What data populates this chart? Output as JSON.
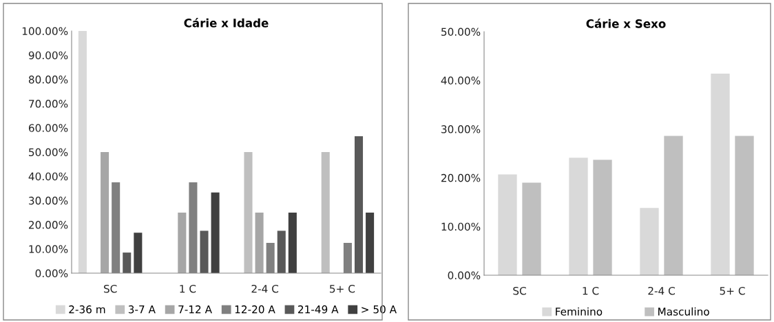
{
  "chart_data": [
    {
      "type": "bar",
      "title": "Cárie x Idade",
      "categories": [
        "SC",
        "1 C",
        "2-4 C",
        "5+ C"
      ],
      "series": [
        {
          "name": "2-36 m",
          "color": "#d9d9d9",
          "values": [
            100,
            0,
            0,
            0
          ]
        },
        {
          "name": "3-7 A",
          "color": "#bfbfbf",
          "values": [
            0,
            0,
            50,
            50
          ]
        },
        {
          "name": "7-12 A",
          "color": "#a6a6a6",
          "values": [
            50,
            25,
            25,
            0
          ]
        },
        {
          "name": "12-20 A",
          "color": "#808080",
          "values": [
            37.5,
            37.5,
            12.5,
            12.5
          ]
        },
        {
          "name": "21-49 A",
          "color": "#595959",
          "values": [
            8.5,
            17.5,
            17.5,
            56.5
          ]
        },
        {
          "name": "> 50 A",
          "color": "#404040",
          "values": [
            16.7,
            33.3,
            25,
            25
          ]
        }
      ],
      "ylim": [
        0,
        100
      ],
      "yticks": [
        {
          "value": 0,
          "label": "0.00%"
        },
        {
          "value": 10,
          "label": "10.00%"
        },
        {
          "value": 20,
          "label": "20.00%"
        },
        {
          "value": 30,
          "label": "30.00%"
        },
        {
          "value": 40,
          "label": "40.00%"
        },
        {
          "value": 50,
          "label": "50.00%"
        },
        {
          "value": 60,
          "label": "60.00%"
        },
        {
          "value": 70,
          "label": "70.00%"
        },
        {
          "value": 80,
          "label": "80.00%"
        },
        {
          "value": 90,
          "label": "90.00%"
        },
        {
          "value": 100,
          "label": "100.00%"
        }
      ],
      "grid": false,
      "legend": "bottom"
    },
    {
      "type": "bar",
      "title": "Cárie x Sexo",
      "categories": [
        "SC",
        "1 C",
        "2-4 C",
        "5+ C"
      ],
      "series": [
        {
          "name": "Feminino",
          "color": "#d9d9d9",
          "values": [
            20.7,
            24.1,
            13.8,
            41.4
          ]
        },
        {
          "name": "Masculino",
          "color": "#bfbfbf",
          "values": [
            19,
            23.7,
            28.6,
            28.6
          ]
        }
      ],
      "ylim": [
        0,
        50
      ],
      "yticks": [
        {
          "value": 0,
          "label": "0.00%"
        },
        {
          "value": 10,
          "label": "10.00%"
        },
        {
          "value": 20,
          "label": "20.00%"
        },
        {
          "value": 30,
          "label": "30.00%"
        },
        {
          "value": 40,
          "label": "40.00%"
        },
        {
          "value": 50,
          "label": "50.00%"
        }
      ],
      "grid": false,
      "legend": "bottom"
    }
  ]
}
